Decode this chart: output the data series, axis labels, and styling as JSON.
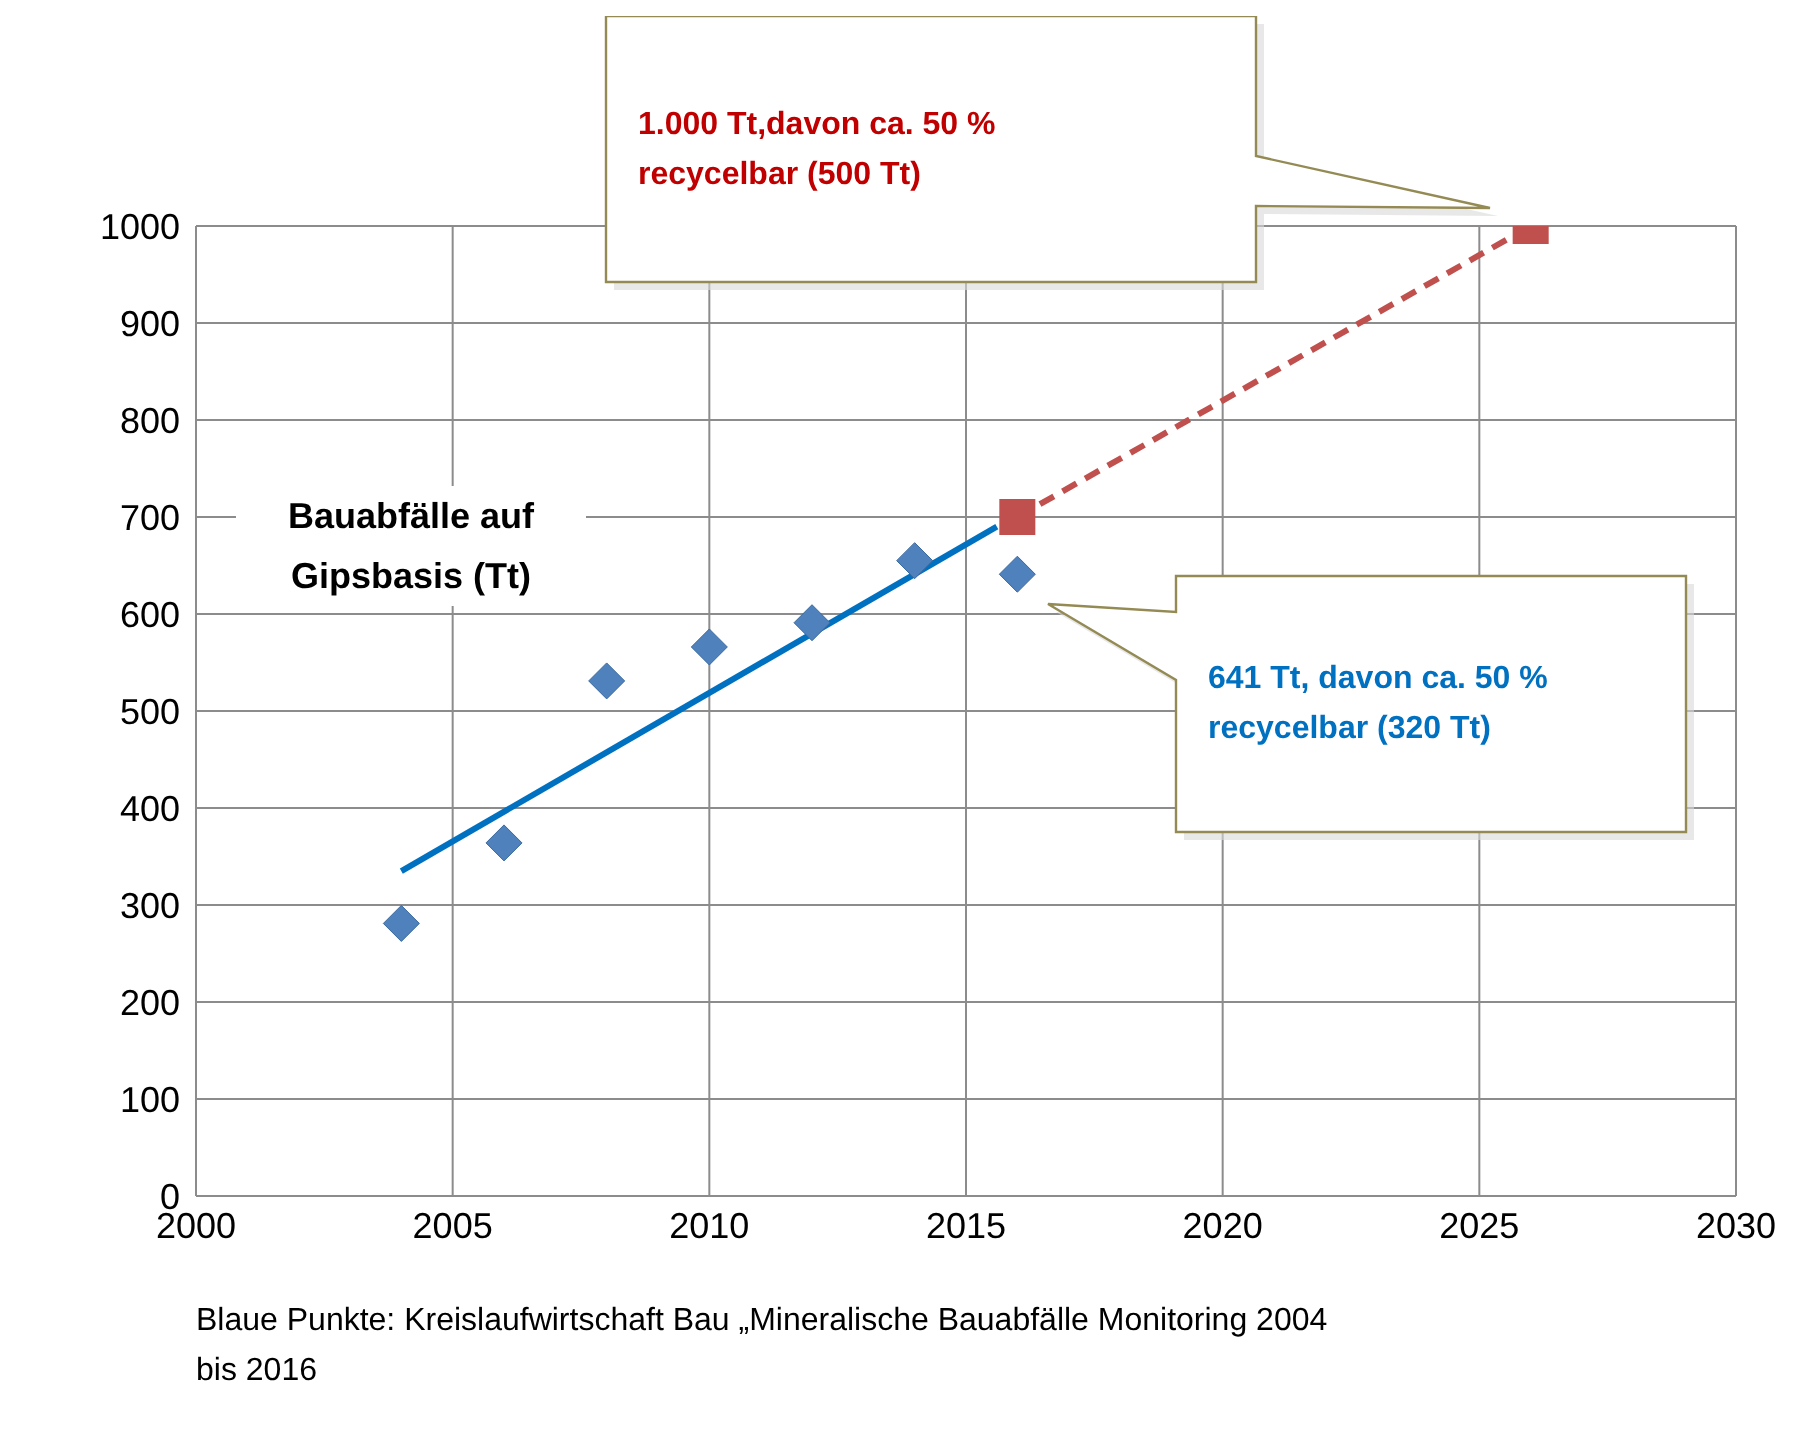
{
  "chart_data": {
    "type": "scatter",
    "xlim": [
      2000,
      2030
    ],
    "xticks": [
      2000,
      2005,
      2010,
      2015,
      2020,
      2025,
      2030
    ],
    "ylim": [
      0,
      1000
    ],
    "yticks": [
      0,
      100,
      200,
      300,
      400,
      500,
      600,
      700,
      800,
      900,
      1000
    ],
    "grid": true,
    "legend": false,
    "series": [
      {
        "color": "#4f81bd",
        "marker": "diamond",
        "x": [
          2004,
          2006,
          2008,
          2010,
          2012,
          2014,
          2016
        ],
        "values": [
          281,
          364,
          531,
          566,
          591,
          655,
          641
        ]
      },
      {
        "type": "line",
        "color": "#0070c0",
        "marker": "none",
        "line_style": "solid",
        "x": [
          2004,
          2015.6
        ],
        "values": [
          335,
          690
        ]
      },
      {
        "type": "line",
        "color": "#c0504d",
        "marker": "square",
        "line_style": "dashed",
        "x": [
          2016,
          2026
        ],
        "values": [
          700,
          1000
        ]
      }
    ],
    "annotations": [
      "1.000 Tt,davon ca. 50 % recycelbar (500 Tt)",
      "641 Tt, davon ca. 50 % recycelbar (320 Tt)",
      "Bauabfälle auf Gipsbasis (Tt)",
      "Blaue Punkte: Kreislaufwirtschaft Bau „Mineralische Bauabfälle Monitoring 2004 bis 2016"
    ]
  }
}
